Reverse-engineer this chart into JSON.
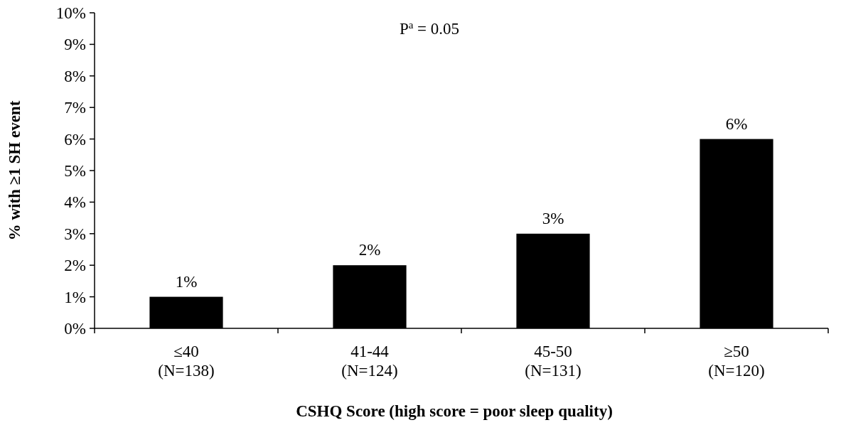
{
  "chart_data": {
    "type": "bar",
    "xlabel": "CSHQ Score (high score = poor sleep quality)",
    "ylabel": "% with ≥1 SH event",
    "categories": [
      "≤40\n(N=138)",
      "41-44\n(N=124)",
      "45-50\n(N=131)",
      "≥50\n(N=120)"
    ],
    "values": [
      1,
      2,
      3,
      6
    ],
    "color": "#000000",
    "value_labels": [
      "1%",
      "2%",
      "3%",
      "6%"
    ],
    "ylim": [
      0,
      10
    ],
    "yticks": [
      {
        "value": 0,
        "label": "0%"
      },
      {
        "value": 1,
        "label": "1%"
      },
      {
        "value": 2,
        "label": "2%"
      },
      {
        "value": 3,
        "label": "3%"
      },
      {
        "value": 4,
        "label": "4%"
      },
      {
        "value": 5,
        "label": "5%"
      },
      {
        "value": 6,
        "label": "6%"
      },
      {
        "value": 7,
        "label": "7%"
      },
      {
        "value": 8,
        "label": "8%"
      },
      {
        "value": 9,
        "label": "9%"
      },
      {
        "value": 10,
        "label": "10%"
      }
    ],
    "annotations": [
      "P$^{a}$ = 0.05"
    ],
    "grid": false
  }
}
